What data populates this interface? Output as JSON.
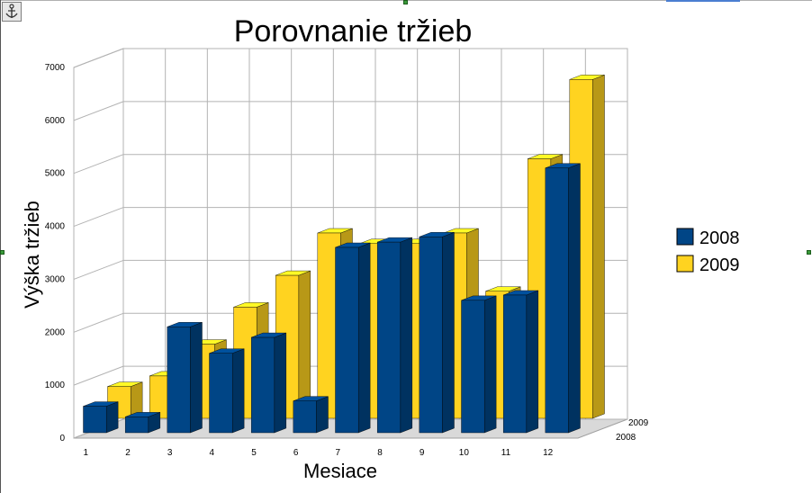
{
  "chart_data": {
    "type": "bar",
    "title": "Porovnanie tržieb",
    "xlabel": "Mesiace",
    "ylabel": "Výška tržieb",
    "categories": [
      "1",
      "2",
      "3",
      "4",
      "5",
      "6",
      "7",
      "8",
      "9",
      "10",
      "11",
      "12"
    ],
    "series": [
      {
        "name": "2008",
        "color": "#004586",
        "values": [
          500,
          300,
          2000,
          1500,
          1800,
          600,
          3500,
          3600,
          3700,
          2500,
          2600,
          5000
        ]
      },
      {
        "name": "2009",
        "color": "#ffd320",
        "values": [
          600,
          800,
          1400,
          2100,
          2700,
          3500,
          3300,
          3300,
          3500,
          2400,
          4900,
          6400
        ]
      }
    ],
    "depth_labels": [
      "2009",
      "2008"
    ],
    "ylim": [
      0,
      7000
    ],
    "yticks": [
      0,
      1000,
      2000,
      3000,
      4000,
      5000,
      6000,
      7000
    ],
    "grid": true,
    "legend_position": "right"
  },
  "toolbar": {
    "anchor_icon": "anchor-icon"
  }
}
